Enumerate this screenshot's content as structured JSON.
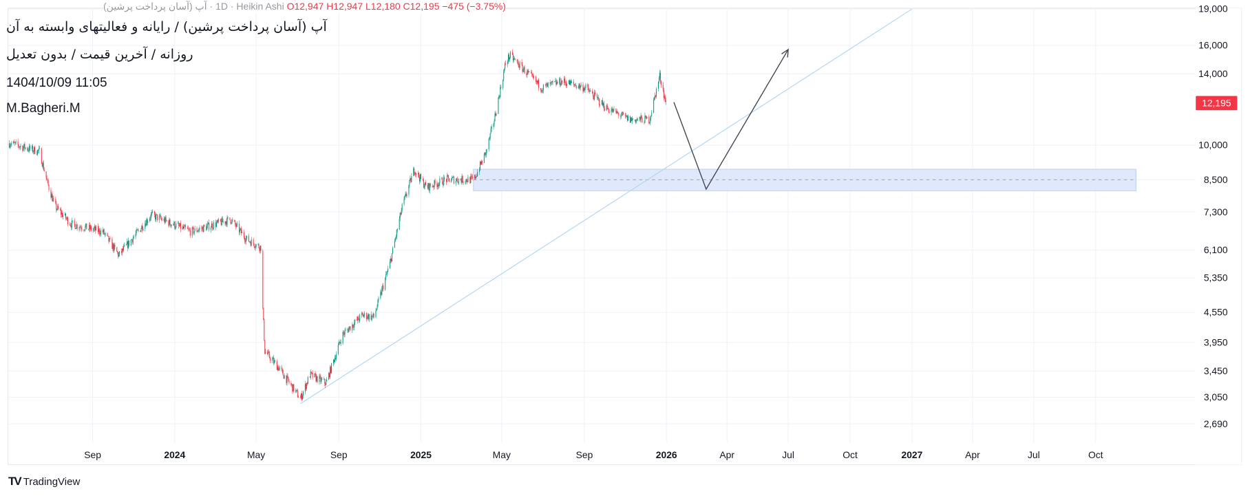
{
  "header": {
    "legend": {
      "symbol": "آپ (آسان پرداخت پرشین)",
      "interval": "1D",
      "style": "Heikin Ashi",
      "open": "O12,947",
      "high": "H12,947",
      "low": "L12,180",
      "close": "C12,195",
      "change": "−475 (−3.75%)"
    },
    "title": "آپ (آسان پرداخت پرشین) / رایانه و فعالیتهای وابسته به آن",
    "subtitle": "روزانه / آخرین قیمت / بدون تعدیل",
    "datetime": "1404/10/09 11:05",
    "author": "M.Bagheri.M"
  },
  "branding": {
    "logo": "TV",
    "name": "TradingView"
  },
  "colors": {
    "up": "#089981",
    "down": "#f23645",
    "zone": "#dde7fb",
    "trendline": "#b3d4f5",
    "projection": "#434651",
    "grid": "#f0f3fa"
  },
  "chart_data": {
    "type": "candlestick",
    "scale": "log",
    "grid": true,
    "last_price": 12195,
    "last_price_label": "12,195",
    "y_ticks": [
      {
        "value": 19000,
        "label": "19,000"
      },
      {
        "value": 16000,
        "label": "16,000"
      },
      {
        "value": 14000,
        "label": "14,000"
      },
      {
        "value": 10000,
        "label": "10,000"
      },
      {
        "value": 8500,
        "label": "8,500"
      },
      {
        "value": 7300,
        "label": "7,300"
      },
      {
        "value": 6100,
        "label": "6,100"
      },
      {
        "value": 5350,
        "label": "5,350"
      },
      {
        "value": 4550,
        "label": "4,550"
      },
      {
        "value": 3950,
        "label": "3,950"
      },
      {
        "value": 3450,
        "label": "3,450"
      },
      {
        "value": 3050,
        "label": "3,050"
      },
      {
        "value": 2690,
        "label": "2,690"
      }
    ],
    "x_ticks": [
      {
        "date": "2023-09-01",
        "label": "Sep",
        "bold": false
      },
      {
        "date": "2024-01-01",
        "label": "2024",
        "bold": true
      },
      {
        "date": "2024-05-01",
        "label": "May",
        "bold": false
      },
      {
        "date": "2024-09-01",
        "label": "Sep",
        "bold": false
      },
      {
        "date": "2025-01-01",
        "label": "2025",
        "bold": true
      },
      {
        "date": "2025-05-01",
        "label": "May",
        "bold": false
      },
      {
        "date": "2025-09-01",
        "label": "Sep",
        "bold": false
      },
      {
        "date": "2026-01-01",
        "label": "2026",
        "bold": true
      },
      {
        "date": "2026-04-01",
        "label": "Apr",
        "bold": false
      },
      {
        "date": "2026-07-01",
        "label": "Jul",
        "bold": false
      },
      {
        "date": "2026-10-01",
        "label": "Oct",
        "bold": false
      },
      {
        "date": "2027-01-01",
        "label": "2027",
        "bold": true
      },
      {
        "date": "2027-04-01",
        "label": "Apr",
        "bold": false
      },
      {
        "date": "2027-07-01",
        "label": "Jul",
        "bold": false
      },
      {
        "date": "2027-10-01",
        "label": "Oct",
        "bold": false
      }
    ],
    "price_path": [
      [
        "2023-04-30",
        10100
      ],
      [
        "2023-06-14",
        9700
      ],
      [
        "2023-06-26",
        8350
      ],
      [
        "2023-07-07",
        7500
      ],
      [
        "2023-07-31",
        6900
      ],
      [
        "2023-09-16",
        6650
      ],
      [
        "2023-10-10",
        5950
      ],
      [
        "2023-11-27",
        7200
      ],
      [
        "2024-01-25",
        6650
      ],
      [
        "2024-03-24",
        7050
      ],
      [
        "2024-04-17",
        6420
      ],
      [
        "2024-05-08",
        6180
      ],
      [
        "2024-05-10",
        4930
      ],
      [
        "2024-05-14",
        3790
      ],
      [
        "2024-06-03",
        3510
      ],
      [
        "2024-07-06",
        3030
      ],
      [
        "2024-07-20",
        3390
      ],
      [
        "2024-08-13",
        3260
      ],
      [
        "2024-09-06",
        4090
      ],
      [
        "2024-10-06",
        4490
      ],
      [
        "2024-10-23",
        4450
      ],
      [
        "2024-11-16",
        5730
      ],
      [
        "2024-12-04",
        7460
      ],
      [
        "2024-12-22",
        8930
      ],
      [
        "2025-01-09",
        8190
      ],
      [
        "2025-02-08",
        8510
      ],
      [
        "2025-03-21",
        8500
      ],
      [
        "2025-04-08",
        9700
      ],
      [
        "2025-04-20",
        11280
      ],
      [
        "2025-05-08",
        14950
      ],
      [
        "2025-05-14",
        15230
      ],
      [
        "2025-06-06",
        14130
      ],
      [
        "2025-06-30",
        13100
      ],
      [
        "2025-07-30",
        13510
      ],
      [
        "2025-09-03",
        13100
      ],
      [
        "2025-10-03",
        11930
      ],
      [
        "2025-11-07",
        11280
      ],
      [
        "2025-12-07",
        11300
      ],
      [
        "2025-12-22",
        13870
      ],
      [
        "2025-12-31",
        12195
      ]
    ],
    "drawings": {
      "trendline": {
        "from": [
          "2024-07-06",
          2960
        ],
        "through": [
          "2027-01-01",
          19000
        ]
      },
      "zone": {
        "from": "2025-03-20",
        "to": "2027-11-30",
        "top": 8930,
        "bottom": 8070,
        "mid": 8500
      },
      "projection": [
        [
          "2026-01-12",
          12250
        ],
        [
          "2026-03-01",
          8130
        ],
        [
          "2026-07-01",
          15700
        ]
      ]
    }
  }
}
